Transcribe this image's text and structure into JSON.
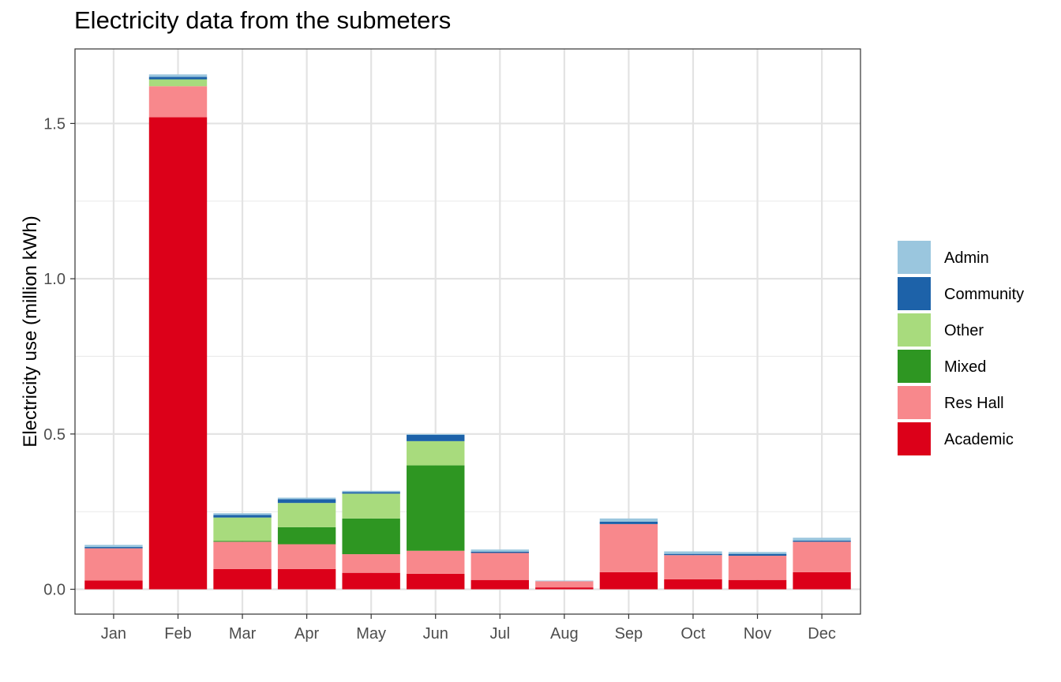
{
  "chart_data": {
    "type": "bar",
    "stacked": true,
    "title": "Electricity data from the submeters",
    "xlabel": "",
    "ylabel": "Electricity use (million kWh)",
    "ylim": [
      -0.08,
      1.74
    ],
    "yticks": [
      0.0,
      0.5,
      1.0,
      1.5
    ],
    "ytick_labels": [
      "0.0",
      "0.5",
      "1.0",
      "1.5"
    ],
    "grid": true,
    "legend_position": "right",
    "categories": [
      "Jan",
      "Feb",
      "Mar",
      "Apr",
      "May",
      "Jun",
      "Jul",
      "Aug",
      "Sep",
      "Oct",
      "Nov",
      "Dec"
    ],
    "series": [
      {
        "name": "Academic",
        "color": "#DC0019",
        "values": [
          0.028,
          1.52,
          0.065,
          0.065,
          0.053,
          0.05,
          0.03,
          0.006,
          0.055,
          0.032,
          0.03,
          0.055
        ]
      },
      {
        "name": "Res Hall",
        "color": "#F8888C",
        "values": [
          0.104,
          0.1,
          0.088,
          0.08,
          0.06,
          0.074,
          0.087,
          0.02,
          0.155,
          0.078,
          0.078,
          0.098
        ]
      },
      {
        "name": "Mixed",
        "color": "#2E9622",
        "values": [
          0.0,
          0.0,
          0.003,
          0.055,
          0.115,
          0.275,
          0.0,
          0.0,
          0.0,
          0.0,
          0.0,
          0.0
        ]
      },
      {
        "name": "Other",
        "color": "#A8DB7D",
        "values": [
          0.0,
          0.022,
          0.075,
          0.078,
          0.08,
          0.078,
          0.0,
          0.0,
          0.0,
          0.0,
          0.0,
          0.0
        ]
      },
      {
        "name": "Community",
        "color": "#1D62A9",
        "values": [
          0.004,
          0.008,
          0.008,
          0.012,
          0.005,
          0.02,
          0.004,
          0.0,
          0.008,
          0.004,
          0.006,
          0.004
        ]
      },
      {
        "name": "Admin",
        "color": "#9AC6DE",
        "values": [
          0.007,
          0.008,
          0.006,
          0.005,
          0.004,
          0.003,
          0.007,
          0.002,
          0.01,
          0.008,
          0.006,
          0.009
        ]
      }
    ],
    "legend_order": [
      "Admin",
      "Community",
      "Other",
      "Mixed",
      "Res Hall",
      "Academic"
    ]
  }
}
